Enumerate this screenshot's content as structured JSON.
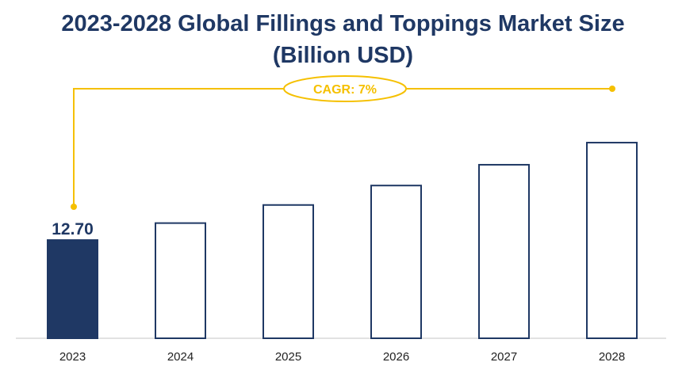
{
  "chart_data": {
    "type": "bar",
    "title_line1": "2023-2028 Global Fillings and Toppings Market Size",
    "title_line2": "(Billion USD)",
    "categories": [
      "2023",
      "2024",
      "2025",
      "2026",
      "2027",
      "2028"
    ],
    "values": [
      12.7,
      13.59,
      14.54,
      15.56,
      16.65,
      17.81
    ],
    "data_labels": [
      "12.70",
      "",
      "",
      "",
      "",
      ""
    ],
    "annotation": "CAGR: 7%",
    "xlabel": "",
    "ylabel": "",
    "grid": false,
    "legend": "none",
    "colors": {
      "highlight_fill": "#1f3864",
      "outline": "#1f3864",
      "annotation": "#f5c000",
      "axis": "#d9d9d9"
    }
  }
}
